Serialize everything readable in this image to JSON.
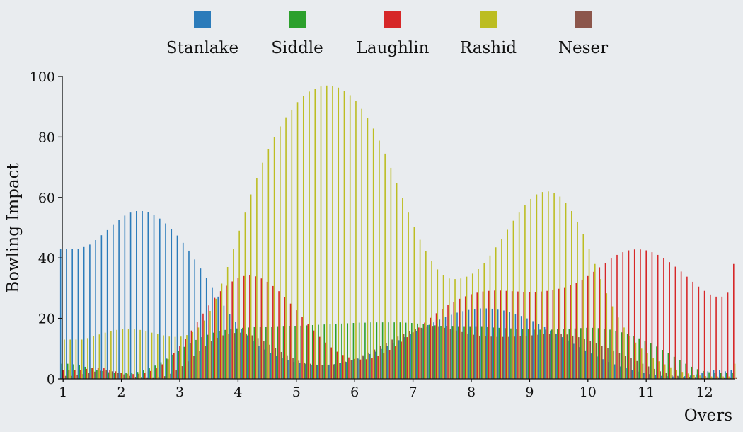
{
  "chart_data": {
    "type": "bar",
    "xlabel": "Overs",
    "ylabel": "Bowling Impact",
    "ylim": [
      0,
      100
    ],
    "yticks": [
      0,
      20,
      40,
      60,
      80,
      100
    ],
    "xticks": [
      "1",
      "2",
      "3",
      "4",
      "5",
      "6",
      "7",
      "8",
      "9",
      "10",
      "11",
      "12",
      "13",
      "14",
      "15",
      "16",
      "17",
      "18",
      "19",
      "20"
    ],
    "x_start": 1,
    "x_step": 0.1,
    "legend_position": "top",
    "series": [
      {
        "name": "Stanlake",
        "color": "#2b7bba",
        "values": [
          43.0,
          43.0,
          43.0,
          43.0,
          43.6,
          44.4,
          45.9,
          47.5,
          49.2,
          50.9,
          52.6,
          54.0,
          55.0,
          55.5,
          55.5,
          55.1,
          54.2,
          53.0,
          51.4,
          49.5,
          47.4,
          45.0,
          42.4,
          39.5,
          36.5,
          33.4,
          30.3,
          27.2,
          24.2,
          21.4,
          18.8,
          16.5,
          14.4,
          12.6,
          11.0,
          9.7,
          8.6,
          7.6,
          6.8,
          6.1,
          5.6,
          5.2,
          4.9,
          4.7,
          4.6,
          4.6,
          4.7,
          4.9,
          5.2,
          5.6,
          6.1,
          6.7,
          7.4,
          8.2,
          9.0,
          9.9,
          10.8,
          11.8,
          12.8,
          13.8,
          14.8,
          15.8,
          16.8,
          17.8,
          18.7,
          19.6,
          20.4,
          21.2,
          21.9,
          22.4,
          22.8,
          23.1,
          23.3,
          23.3,
          23.2,
          22.9,
          22.6,
          22.1,
          21.5,
          20.8,
          20.0,
          19.1,
          18.1,
          17.1,
          16.0,
          14.9,
          13.8,
          12.7,
          11.6,
          10.5,
          9.4,
          8.4,
          7.4,
          6.5,
          5.6,
          4.8,
          4.1,
          3.5,
          2.9,
          2.4,
          1.9,
          1.6,
          1.3,
          1.0,
          0.9,
          0.8,
          0.8,
          0.9,
          1.1,
          1.5,
          2.0,
          2.5,
          3.0,
          3.0,
          2.5,
          3.0
        ]
      },
      {
        "name": "Siddle",
        "color": "#2ca02c",
        "values": [
          5.0,
          5.0,
          4.8,
          4.5,
          4.0,
          3.5,
          3.0,
          2.6,
          2.2,
          2.0,
          1.9,
          1.9,
          2.0,
          2.3,
          2.8,
          3.5,
          4.4,
          5.5,
          6.7,
          8.0,
          9.3,
          10.6,
          11.8,
          12.9,
          13.8,
          14.6,
          15.3,
          15.8,
          16.2,
          16.5,
          16.7,
          16.9,
          17.0,
          17.1,
          17.1,
          17.1,
          17.1,
          17.2,
          17.3,
          17.4,
          17.5,
          17.6,
          17.7,
          17.8,
          17.9,
          18.0,
          18.1,
          18.2,
          18.3,
          18.4,
          18.5,
          18.6,
          18.6,
          18.7,
          18.7,
          18.7,
          18.7,
          18.7,
          18.7,
          18.6,
          18.5,
          18.3,
          18.1,
          17.9,
          17.7,
          17.5,
          17.4,
          17.3,
          17.2,
          17.2,
          17.2,
          17.2,
          17.2,
          17.1,
          17.0,
          16.9,
          16.8,
          16.7,
          16.6,
          16.5,
          16.4,
          16.3,
          16.3,
          16.3,
          16.3,
          16.4,
          16.5,
          16.6,
          16.7,
          16.8,
          16.9,
          16.9,
          16.8,
          16.6,
          16.3,
          15.9,
          15.4,
          14.8,
          14.1,
          13.4,
          12.6,
          11.7,
          10.7,
          9.6,
          8.5,
          7.3,
          6.1,
          5.0,
          4.0,
          3.2,
          2.6,
          2.2,
          2.0,
          2.0,
          2.0,
          2.0
        ]
      },
      {
        "name": "Laughlin",
        "color": "#d62728",
        "values": [
          3.0,
          3.0,
          3.0,
          3.0,
          3.3,
          3.6,
          3.7,
          3.5,
          3.0,
          2.5,
          2.0,
          1.7,
          1.6,
          1.7,
          2.0,
          2.6,
          3.5,
          4.8,
          6.5,
          8.5,
          10.8,
          13.3,
          16.0,
          18.8,
          21.6,
          24.3,
          26.8,
          29.0,
          30.8,
          32.2,
          33.3,
          34.0,
          34.2,
          33.9,
          33.2,
          32.1,
          30.7,
          29.0,
          27.0,
          24.9,
          22.7,
          20.4,
          18.2,
          16.0,
          13.9,
          12.0,
          10.4,
          9.0,
          7.9,
          7.1,
          6.6,
          6.4,
          6.5,
          6.9,
          7.6,
          8.5,
          9.6,
          10.9,
          12.3,
          13.8,
          15.4,
          17.0,
          18.6,
          20.2,
          21.7,
          23.1,
          24.4,
          25.5,
          26.5,
          27.3,
          28.0,
          28.5,
          28.9,
          29.1,
          29.2,
          29.2,
          29.1,
          29.0,
          28.9,
          28.8,
          28.8,
          28.8,
          28.9,
          29.1,
          29.4,
          29.8,
          30.3,
          31.0,
          31.8,
          32.8,
          34.0,
          35.4,
          36.9,
          38.4,
          39.8,
          41.0,
          41.9,
          42.5,
          42.8,
          42.8,
          42.5,
          41.9,
          41.0,
          39.9,
          38.6,
          37.1,
          35.5,
          33.8,
          32.1,
          30.5,
          29.1,
          27.9,
          27.2,
          27.2,
          28.5,
          38.0
        ]
      },
      {
        "name": "Rashid",
        "color": "#bcbd22",
        "values": [
          13.0,
          13.0,
          13.0,
          13.0,
          13.5,
          14.1,
          14.7,
          15.3,
          15.8,
          16.2,
          16.5,
          16.6,
          16.5,
          16.2,
          15.8,
          15.3,
          14.8,
          14.4,
          14.0,
          13.9,
          14.0,
          14.5,
          15.5,
          17.0,
          19.3,
          22.5,
          26.5,
          31.5,
          37.0,
          43.0,
          49.0,
          55.0,
          61.0,
          66.5,
          71.5,
          76.0,
          80.0,
          83.5,
          86.5,
          89.0,
          91.5,
          93.5,
          95.0,
          96.0,
          96.7,
          97.0,
          96.8,
          96.3,
          95.3,
          93.8,
          91.8,
          89.3,
          86.3,
          82.8,
          78.8,
          74.5,
          69.8,
          64.8,
          59.8,
          55.0,
          50.3,
          46.0,
          42.2,
          38.9,
          36.2,
          34.2,
          33.2,
          33.0,
          33.2,
          33.8,
          34.8,
          36.3,
          38.3,
          40.8,
          43.5,
          46.3,
          49.3,
          52.3,
          55.0,
          57.5,
          59.5,
          61.0,
          61.8,
          62.0,
          61.5,
          60.3,
          58.3,
          55.5,
          52.0,
          47.8,
          43.0,
          38.0,
          33.0,
          28.3,
          24.0,
          20.3,
          17.0,
          14.3,
          12.0,
          10.0,
          8.5,
          7.0,
          5.8,
          4.8,
          3.8,
          3.0,
          2.3,
          1.8,
          1.4,
          1.1,
          0.9,
          0.8,
          0.8,
          0.8,
          0.8,
          5.0
        ]
      },
      {
        "name": "Neser",
        "color": "#8c564b",
        "values": [
          1.0,
          1.0,
          1.2,
          1.6,
          2.0,
          2.4,
          2.7,
          2.8,
          2.5,
          2.0,
          1.5,
          1.0,
          0.6,
          0.4,
          0.3,
          0.3,
          0.5,
          0.9,
          1.7,
          2.8,
          4.2,
          5.8,
          7.5,
          9.3,
          11.0,
          12.5,
          13.6,
          14.4,
          14.9,
          15.2,
          15.3,
          15.0,
          14.4,
          13.5,
          12.5,
          11.3,
          10.1,
          8.9,
          7.8,
          6.8,
          6.0,
          5.4,
          5.0,
          4.7,
          4.6,
          4.6,
          4.8,
          5.2,
          5.7,
          6.3,
          7.0,
          7.8,
          8.7,
          9.7,
          10.8,
          11.9,
          13.0,
          14.0,
          14.9,
          15.7,
          16.4,
          16.9,
          17.2,
          17.3,
          17.2,
          16.9,
          16.5,
          16.0,
          15.5,
          15.0,
          14.6,
          14.3,
          14.1,
          14.0,
          13.9,
          13.9,
          13.9,
          14.0,
          14.1,
          14.2,
          14.4,
          14.6,
          14.8,
          14.9,
          15.0,
          14.9,
          14.7,
          14.3,
          13.8,
          13.2,
          12.5,
          11.8,
          11.0,
          10.2,
          9.4,
          8.6,
          7.7,
          6.8,
          5.9,
          5.0,
          4.1,
          3.3,
          2.5,
          1.9,
          1.4,
          1.0,
          0.7,
          0.5,
          0.4,
          0.3,
          0.3,
          0.3,
          0.3,
          0.3,
          0.3,
          0.3
        ]
      }
    ]
  }
}
